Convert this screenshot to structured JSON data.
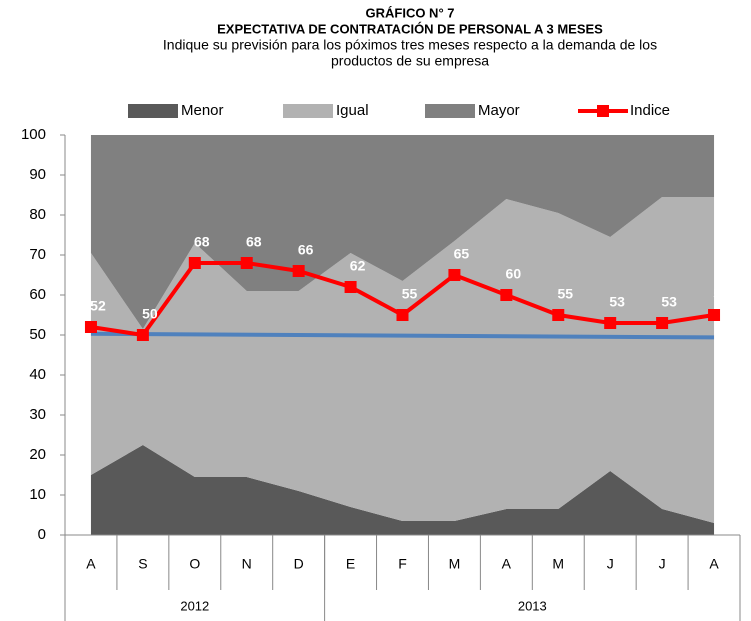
{
  "chart_data": {
    "type": "stacked-area-line",
    "title": "GRÁFICO N°  7",
    "subtitle": "EXPECTATIVA DE CONTRATACIÓN DE PERSONAL A 3 MESES",
    "description": [
      "Indique su previsión para los póximos tres meses respecto a la demanda de los",
      "productos de su empresa"
    ],
    "categories": [
      "A",
      "S",
      "O",
      "N",
      "D",
      "E",
      "F",
      "M",
      "A",
      "M",
      "J",
      "J",
      "A"
    ],
    "groups": [
      {
        "label": "2012",
        "count": 5
      },
      {
        "label": "2013",
        "count": 8
      }
    ],
    "series": [
      {
        "name": "Menor",
        "color": "#595959",
        "values": [
          15,
          22.5,
          14.5,
          14.5,
          11,
          7,
          3.5,
          3.5,
          6.5,
          6.5,
          16,
          6.5,
          3
        ]
      },
      {
        "name": "Igual",
        "color": "#b2b2b2",
        "values": [
          55.5,
          29,
          58.5,
          46.5,
          50,
          63.5,
          60,
          70,
          77.5,
          74,
          58.5,
          78,
          81.5
        ]
      },
      {
        "name": "Mayor",
        "color": "#808080",
        "values": [
          29.5,
          48.5,
          27,
          39,
          39,
          29.5,
          36.5,
          26.5,
          16,
          19.5,
          25.5,
          15.5,
          15.5
        ]
      },
      {
        "name": "Indice",
        "color": "#ff0000",
        "type": "line",
        "values": [
          52,
          50,
          68,
          68,
          66,
          62,
          55,
          65,
          60,
          55,
          53,
          53,
          55
        ]
      }
    ],
    "trendline": {
      "color": "#4f81bd",
      "values": [
        50.3,
        49.4
      ]
    },
    "ylim": [
      0,
      100
    ],
    "yticks": [
      0,
      10,
      20,
      30,
      40,
      50,
      60,
      70,
      80,
      90,
      100
    ]
  }
}
